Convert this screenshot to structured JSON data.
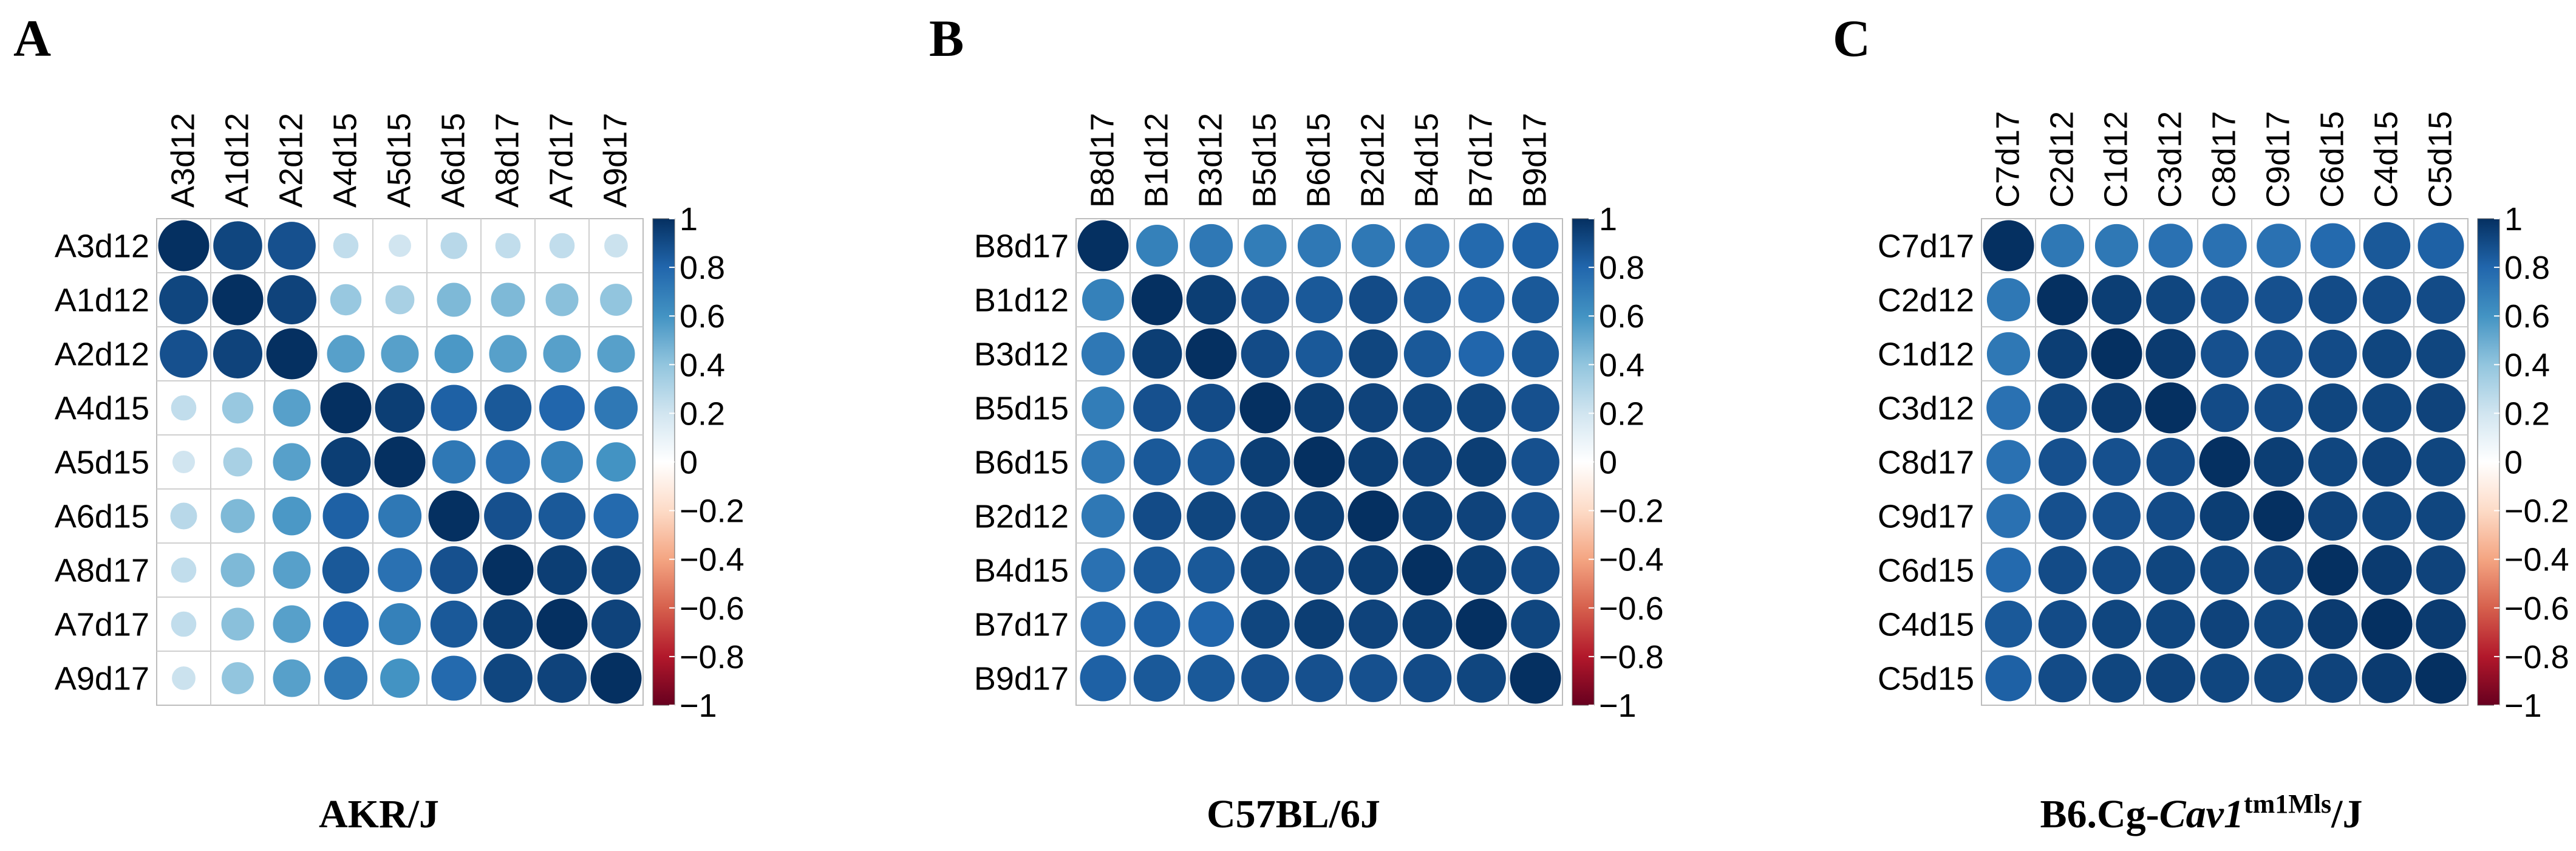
{
  "colorbar": {
    "ticks": [
      "1",
      "0.8",
      "0.6",
      "0.4",
      "0.2",
      "0",
      "−0.2",
      "−0.4",
      "−0.6",
      "−0.8",
      "−1"
    ],
    "stops": [
      "#67001F",
      "#B2182B",
      "#D6604D",
      "#F4A582",
      "#FDDBC7",
      "#FFFFFF",
      "#D1E5F0",
      "#92C5DE",
      "#4393C3",
      "#2166AC",
      "#053061"
    ]
  },
  "chart_data": [
    {
      "type": "heatmap",
      "panel_letter": "A",
      "caption": {
        "parts": [
          {
            "text": "AKR/J",
            "style": "normal"
          }
        ]
      },
      "labels": [
        "A3d12",
        "A1d12",
        "A2d12",
        "A4d15",
        "A5d15",
        "A6d15",
        "A8d17",
        "A7d17",
        "A9d17"
      ],
      "value_range": [
        -1,
        1
      ],
      "matrix": [
        [
          1.0,
          0.92,
          0.88,
          0.25,
          0.2,
          0.28,
          0.25,
          0.25,
          0.22
        ],
        [
          0.92,
          1.0,
          0.93,
          0.38,
          0.33,
          0.45,
          0.45,
          0.42,
          0.4
        ],
        [
          0.88,
          0.93,
          1.0,
          0.55,
          0.55,
          0.58,
          0.55,
          0.55,
          0.55
        ],
        [
          0.25,
          0.38,
          0.55,
          1.0,
          0.95,
          0.82,
          0.85,
          0.8,
          0.72
        ],
        [
          0.2,
          0.33,
          0.55,
          0.95,
          1.0,
          0.72,
          0.75,
          0.68,
          0.6
        ],
        [
          0.28,
          0.45,
          0.58,
          0.82,
          0.72,
          1.0,
          0.88,
          0.85,
          0.78
        ],
        [
          0.25,
          0.45,
          0.55,
          0.85,
          0.75,
          0.88,
          1.0,
          0.95,
          0.92
        ],
        [
          0.25,
          0.42,
          0.55,
          0.8,
          0.68,
          0.85,
          0.95,
          1.0,
          0.93
        ],
        [
          0.22,
          0.4,
          0.55,
          0.72,
          0.6,
          0.78,
          0.92,
          0.93,
          1.0
        ]
      ]
    },
    {
      "type": "heatmap",
      "panel_letter": "B",
      "caption": {
        "parts": [
          {
            "text": "C57BL/6J",
            "style": "normal"
          }
        ]
      },
      "labels": [
        "B8d17",
        "B1d12",
        "B3d12",
        "B5d15",
        "B6d15",
        "B2d12",
        "B4d15",
        "B7d17",
        "B9d17"
      ],
      "value_range": [
        -1,
        1
      ],
      "matrix": [
        [
          1.0,
          0.68,
          0.72,
          0.7,
          0.72,
          0.72,
          0.75,
          0.78,
          0.82
        ],
        [
          0.68,
          1.0,
          0.95,
          0.88,
          0.85,
          0.9,
          0.85,
          0.82,
          0.85
        ],
        [
          0.72,
          0.95,
          1.0,
          0.9,
          0.85,
          0.92,
          0.85,
          0.8,
          0.85
        ],
        [
          0.7,
          0.88,
          0.9,
          1.0,
          0.95,
          0.93,
          0.92,
          0.92,
          0.88
        ],
        [
          0.72,
          0.85,
          0.85,
          0.95,
          1.0,
          0.95,
          0.93,
          0.95,
          0.88
        ],
        [
          0.72,
          0.9,
          0.92,
          0.93,
          0.95,
          1.0,
          0.95,
          0.93,
          0.88
        ],
        [
          0.75,
          0.85,
          0.85,
          0.92,
          0.93,
          0.95,
          1.0,
          0.95,
          0.9
        ],
        [
          0.78,
          0.82,
          0.8,
          0.92,
          0.95,
          0.93,
          0.95,
          1.0,
          0.92
        ],
        [
          0.82,
          0.85,
          0.85,
          0.88,
          0.88,
          0.88,
          0.9,
          0.92,
          1.0
        ]
      ]
    },
    {
      "type": "heatmap",
      "panel_letter": "C",
      "caption": {
        "parts": [
          {
            "text": "B6.Cg-",
            "style": "normal"
          },
          {
            "text": "Cav1",
            "style": "italic"
          },
          {
            "text": "tm1Mls",
            "style": "sup"
          },
          {
            "text": "/J",
            "style": "normal"
          }
        ]
      },
      "labels": [
        "C7d17",
        "C2d12",
        "C1d12",
        "C3d12",
        "C8d17",
        "C9d17",
        "C6d15",
        "C4d15",
        "C5d15"
      ],
      "value_range": [
        -1,
        1
      ],
      "matrix": [
        [
          1.0,
          0.72,
          0.72,
          0.75,
          0.75,
          0.75,
          0.78,
          0.85,
          0.82
        ],
        [
          0.72,
          1.0,
          0.95,
          0.92,
          0.88,
          0.88,
          0.9,
          0.9,
          0.9
        ],
        [
          0.72,
          0.95,
          1.0,
          0.96,
          0.88,
          0.88,
          0.9,
          0.92,
          0.92
        ],
        [
          0.75,
          0.92,
          0.96,
          1.0,
          0.9,
          0.9,
          0.92,
          0.92,
          0.93
        ],
        [
          0.75,
          0.88,
          0.88,
          0.9,
          1.0,
          0.95,
          0.92,
          0.93,
          0.92
        ],
        [
          0.75,
          0.88,
          0.88,
          0.9,
          0.95,
          1.0,
          0.93,
          0.92,
          0.92
        ],
        [
          0.78,
          0.9,
          0.9,
          0.92,
          0.92,
          0.93,
          1.0,
          0.96,
          0.93
        ],
        [
          0.85,
          0.9,
          0.92,
          0.92,
          0.93,
          0.92,
          0.96,
          1.0,
          0.96
        ],
        [
          0.82,
          0.9,
          0.92,
          0.93,
          0.92,
          0.92,
          0.93,
          0.96,
          1.0
        ]
      ]
    }
  ]
}
